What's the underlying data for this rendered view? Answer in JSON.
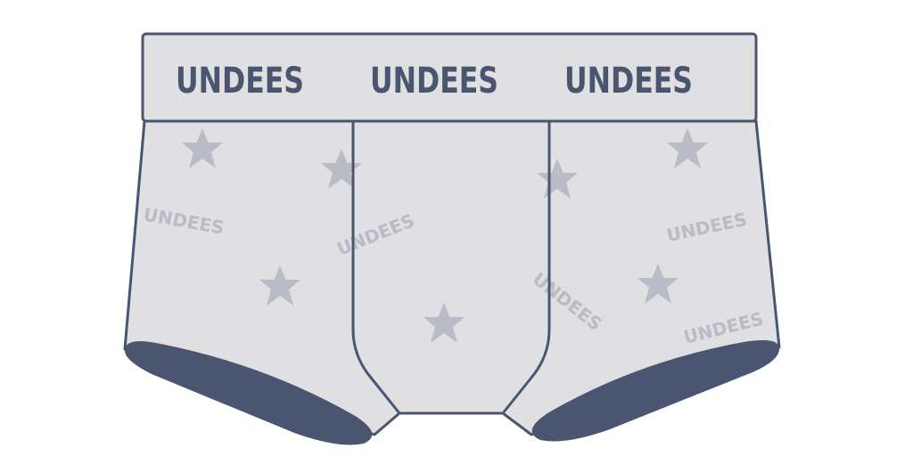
{
  "product": {
    "type": "boxer-brief",
    "colors": {
      "fabric": "#e0e0e2",
      "outline": "#4a5670",
      "leg_cuff": "#4a5670",
      "band_text": "#4a5670",
      "print": "#b9bcc6"
    }
  },
  "waistband": {
    "labels": [
      "UNDEES",
      "UNDEES",
      "UNDEES"
    ]
  },
  "fabric_print": {
    "words": [
      "UNDEES",
      "UNDEES",
      "UNDEES",
      "UNDEES",
      "UNDEES"
    ],
    "star_icon": "star-icon"
  }
}
